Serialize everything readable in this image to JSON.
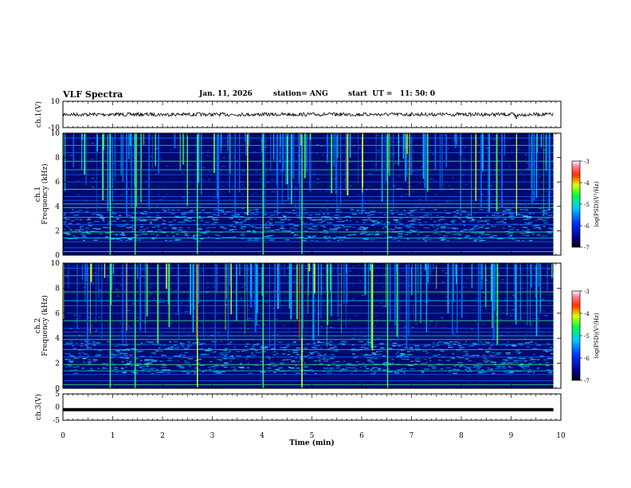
{
  "header": {
    "title": "VLF Spectra",
    "date": "Jan. 11, 2026",
    "station": "station= ANG",
    "start": "start  UT =   11: 50: 0"
  },
  "chart_data": [
    {
      "type": "line",
      "id": "ch1",
      "ylabel": "ch.1(V)",
      "ylim": [
        -10,
        10
      ],
      "yticks": [
        10,
        -10
      ],
      "description_value_level": 0,
      "xlim": [
        0,
        10
      ]
    },
    {
      "type": "heatmap",
      "id": "ch1-spec",
      "ylabel_line1": "ch.1",
      "ylabel_line2": "Frequency (kHz)",
      "ylim": [
        0,
        10
      ],
      "yticks": [
        0,
        2,
        4,
        6,
        8,
        10
      ],
      "xlim": [
        0,
        10
      ],
      "data_end_min": 9.85,
      "colorbar": {
        "label": "log(PSD)(V²/Hz)",
        "range": [
          -7,
          -3
        ],
        "ticks": [
          "-3",
          "-4",
          "-5",
          "-6",
          "-7"
        ]
      }
    },
    {
      "type": "heatmap",
      "id": "ch2-spec",
      "ylabel_line1": "ch.2",
      "ylabel_line2": "Frequency (kHz)",
      "ylim": [
        0,
        10
      ],
      "yticks": [
        0,
        2,
        4,
        6,
        8,
        10
      ],
      "xlim": [
        0,
        10
      ],
      "data_end_min": 9.85,
      "colorbar": {
        "label": "log(PSD)(V²/Hz)",
        "range": [
          -7,
          -3
        ],
        "ticks": [
          "-3",
          "-4",
          "-5",
          "-6",
          "-7"
        ]
      }
    },
    {
      "type": "line",
      "id": "ch3",
      "ylabel": "ch.3(V)",
      "ylim": [
        -5,
        5
      ],
      "yticks": [
        5,
        0,
        -5
      ],
      "value_level": -1,
      "xlim": [
        0,
        10
      ]
    }
  ],
  "xaxis": {
    "label": "Time (min)",
    "ticks": [
      "0",
      "1",
      "2",
      "3",
      "4",
      "5",
      "6",
      "7",
      "8",
      "9",
      "10"
    ]
  }
}
